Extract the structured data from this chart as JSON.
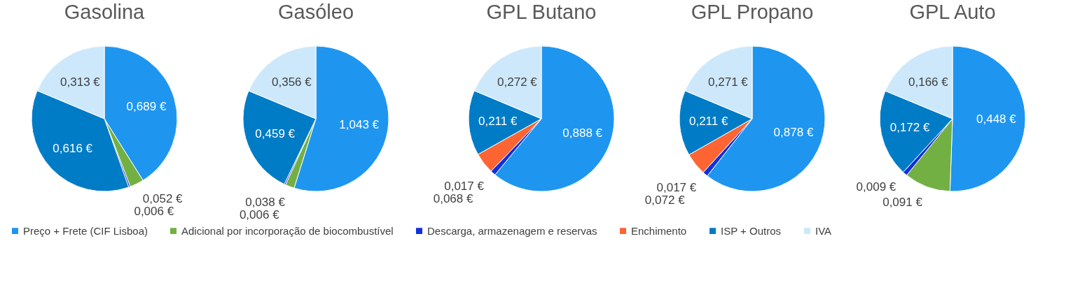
{
  "chart_data": [
    {
      "type": "pie",
      "title": "Gasolina",
      "categories": [
        "Preço + Frete (CIF Lisboa)",
        "Adicional por incorporação de biocombustível",
        "Descarga, armazenagem e reservas",
        "Enchimento",
        "ISP + Outros",
        "IVA"
      ],
      "values": [
        0.689,
        0.052,
        0.006,
        null,
        0.616,
        0.313
      ],
      "value_labels": [
        "0,689 €",
        "0,052 €",
        "0,006 €",
        null,
        "0,616 €",
        "0,313 €"
      ],
      "colors": [
        "#1e96f0",
        "#72b043",
        "#1030e0",
        "#ff6433",
        "#007cc6",
        "#cde8fb"
      ],
      "legend": "bottom"
    },
    {
      "type": "pie",
      "title": "Gasóleo",
      "categories": [
        null,
        null,
        null,
        null,
        null,
        null
      ],
      "values": [
        1.043,
        0.038,
        0.006,
        null,
        0.459,
        0.356
      ],
      "value_labels": [
        "1,043 €",
        "0,038 €",
        "0,006 €",
        null,
        "0,459 €",
        "0,356 €"
      ],
      "colors": [
        "#1e96f0",
        "#72b043",
        "#1030e0",
        "#ff6433",
        "#007cc6",
        "#cde8fb"
      ]
    },
    {
      "type": "pie",
      "title": "GPL Butano",
      "categories": [
        null,
        null,
        null,
        null,
        null,
        null
      ],
      "values": [
        0.888,
        null,
        0.017,
        0.068,
        0.211,
        0.272
      ],
      "value_labels": [
        "0,888 €",
        null,
        "0,017 €",
        "0,068 €",
        "0,211 €",
        "0,272 €"
      ],
      "colors": [
        "#1e96f0",
        "#72b043",
        "#1030e0",
        "#ff6433",
        "#007cc6",
        "#cde8fb"
      ]
    },
    {
      "type": "pie",
      "title": "GPL Propano",
      "categories": [
        null,
        null,
        null,
        null,
        null,
        null
      ],
      "values": [
        0.878,
        null,
        0.017,
        0.072,
        0.211,
        0.271
      ],
      "value_labels": [
        "0,878 €",
        null,
        "0,017 €",
        "0,072 €",
        "0,211 €",
        "0,271 €"
      ],
      "colors": [
        "#1e96f0",
        "#72b043",
        "#1030e0",
        "#ff6433",
        "#007cc6",
        "#cde8fb"
      ]
    },
    {
      "type": "pie",
      "title": "GPL Auto",
      "categories": [
        null,
        null,
        null,
        null,
        null,
        null
      ],
      "values": [
        0.448,
        0.091,
        0.009,
        null,
        0.172,
        0.166
      ],
      "value_labels": [
        "0,448 €",
        "0,091 €",
        "0,009 €",
        null,
        "0,172 €",
        "0,166 €"
      ],
      "colors": [
        "#1e96f0",
        "#72b043",
        "#1030e0",
        "#ff6433",
        "#007cc6",
        "#cde8fb"
      ]
    }
  ]
}
